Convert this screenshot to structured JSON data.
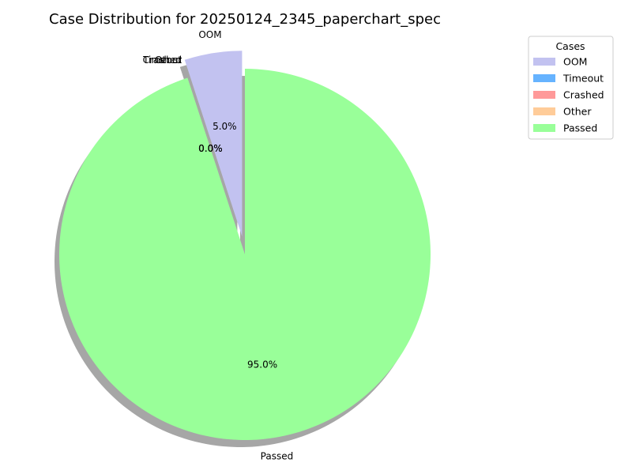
{
  "chart_data": {
    "type": "pie",
    "title": "Case Distribution for 20250124_2345_paperchart_spec",
    "categories": [
      "OOM",
      "Timeout",
      "Crashed",
      "Other",
      "Passed"
    ],
    "values": [
      5.0,
      0.0,
      0.0,
      0.0,
      95.0
    ],
    "value_labels": [
      "5.0%",
      "0.0%",
      "0.0%",
      "0.0%",
      "95.0%"
    ],
    "colors": [
      "#c2c2f0",
      "#66b3ff",
      "#ff9999",
      "#ffcc99",
      "#99ff99"
    ],
    "exploded": [
      "OOM"
    ],
    "shadow": true,
    "start_angle_deg": 90,
    "direction": "counterclockwise",
    "legend": {
      "title": "Cases",
      "placement": "upper-right-outside",
      "entries": [
        "OOM",
        "Timeout",
        "Crashed",
        "Other",
        "Passed"
      ]
    }
  }
}
